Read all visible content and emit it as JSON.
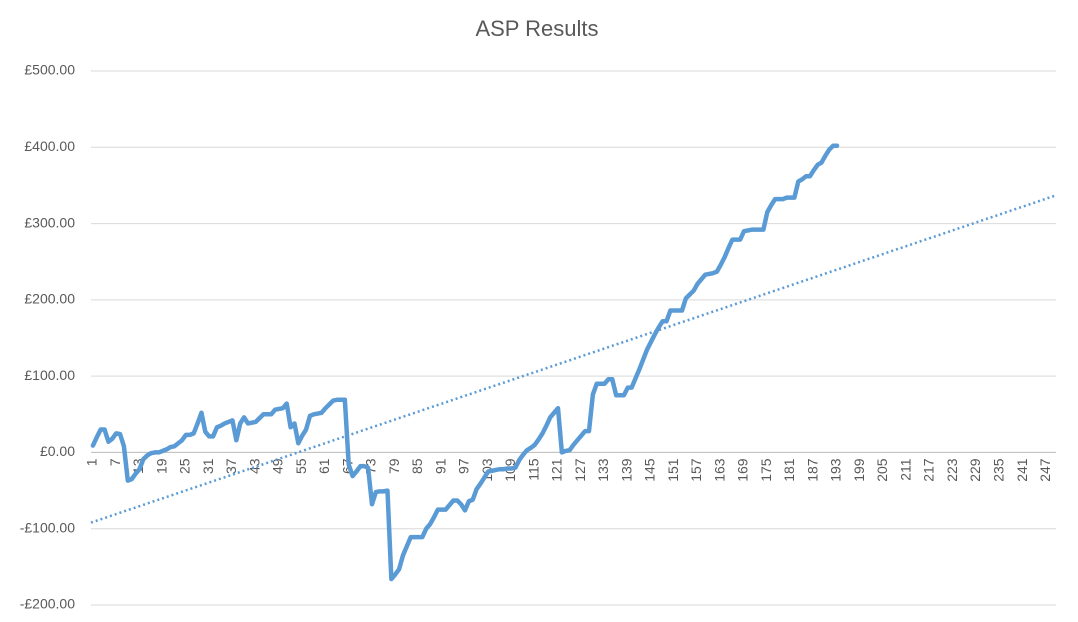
{
  "chart_data": {
    "type": "line",
    "title": "ASP Results",
    "xlim": [
      0.5,
      249.5
    ],
    "xticks": [
      1,
      7,
      13,
      19,
      25,
      31,
      37,
      43,
      49,
      55,
      61,
      67,
      73,
      79,
      85,
      91,
      97,
      103,
      109,
      115,
      121,
      127,
      133,
      139,
      145,
      151,
      157,
      163,
      169,
      175,
      181,
      187,
      193,
      199,
      205,
      211,
      217,
      223,
      229,
      235,
      241,
      247
    ],
    "ylim": [
      -200,
      500
    ],
    "yticks": [
      {
        "value": -200,
        "label": "-£200.00"
      },
      {
        "value": -100,
        "label": "-£100.00"
      },
      {
        "value": 0,
        "label": "£0.00"
      },
      {
        "value": 100,
        "label": "£100.00"
      },
      {
        "value": 200,
        "label": "£200.00"
      },
      {
        "value": 300,
        "label": "£300.00"
      },
      {
        "value": 400,
        "label": "£400.00"
      },
      {
        "value": 500,
        "label": "£500.00"
      }
    ],
    "grid": true,
    "series": [
      {
        "color": "#5b9bd5",
        "x": [
          1,
          2,
          3,
          4,
          5,
          6,
          7,
          8,
          9,
          10,
          11,
          12,
          13,
          14,
          15,
          16,
          17,
          18,
          19,
          20,
          21,
          22,
          23,
          24,
          25,
          26,
          27,
          28,
          29,
          30,
          31,
          32,
          33,
          34,
          35,
          36,
          37,
          38,
          39,
          40,
          41,
          42,
          43,
          44,
          45,
          46,
          47,
          48,
          49,
          50,
          51,
          52,
          53,
          54,
          55,
          56,
          57,
          58,
          59,
          60,
          61,
          62,
          63,
          64,
          65,
          66,
          67,
          68,
          69,
          70,
          71,
          72,
          73,
          74,
          75,
          76,
          77,
          78,
          79,
          80,
          81,
          82,
          83,
          84,
          85,
          86,
          87,
          88,
          89,
          90,
          91,
          92,
          93,
          94,
          95,
          96,
          97,
          98,
          99,
          100,
          101,
          102,
          103,
          104,
          105,
          106,
          107,
          108,
          109,
          110,
          111,
          112,
          113,
          114,
          115,
          116,
          117,
          118,
          119,
          120,
          121,
          122,
          123,
          124,
          125,
          126,
          127,
          128,
          129,
          130,
          131,
          132,
          133,
          134,
          135,
          136,
          137,
          138,
          139,
          140,
          141,
          142,
          143,
          144,
          145,
          146,
          147,
          148,
          149,
          150,
          151,
          152,
          153,
          154,
          155,
          156,
          157,
          158,
          159,
          160,
          161,
          162,
          163,
          164,
          165,
          166,
          167,
          168,
          169,
          170,
          171,
          172,
          173,
          174,
          175,
          176,
          177,
          178,
          179,
          180,
          181,
          182,
          183,
          184,
          185,
          186,
          187,
          188,
          189,
          190,
          191,
          192,
          193
        ],
        "values": [
          9,
          20,
          30,
          30,
          14,
          18,
          25,
          24,
          8,
          -37,
          -35,
          -28,
          -22,
          -9,
          -4,
          -1,
          0,
          0,
          2,
          4,
          7,
          8,
          12,
          16,
          23,
          23,
          25,
          38,
          52,
          27,
          21,
          21,
          33,
          35,
          38,
          40,
          42,
          16,
          38,
          46,
          38,
          39,
          40,
          45,
          50,
          50,
          50,
          56,
          57,
          58,
          64,
          33,
          38,
          12,
          22,
          30,
          48,
          50,
          51,
          52,
          58,
          63,
          68,
          69,
          69,
          69,
          -16,
          -31,
          -25,
          -18,
          -18,
          -20,
          -68,
          -52,
          -51,
          -51,
          -50,
          -166,
          -160,
          -153,
          -135,
          -123,
          -111,
          -111,
          -111,
          -111,
          -100,
          -94,
          -85,
          -75,
          -75,
          -75,
          -69,
          -63,
          -63,
          -68,
          -76,
          -64,
          -62,
          -48,
          -41,
          -33,
          -25,
          -24,
          -23,
          -22,
          -22,
          -21,
          -21,
          -20,
          -10,
          -3,
          3,
          6,
          10,
          17,
          25,
          35,
          46,
          52,
          58,
          0,
          2,
          3,
          10,
          16,
          22,
          28,
          28,
          76,
          90,
          90,
          90,
          96,
          96,
          75,
          75,
          75,
          85,
          85,
          97,
          109,
          122,
          135,
          145,
          155,
          164,
          172,
          172,
          186,
          186,
          186,
          186,
          202,
          207,
          212,
          221,
          227,
          233,
          234,
          235,
          237,
          246,
          256,
          268,
          279,
          279,
          279,
          290,
          291,
          292,
          292,
          292,
          292,
          315,
          324,
          332,
          332,
          332,
          334,
          334,
          334,
          355,
          358,
          362,
          362,
          370,
          377,
          380,
          389,
          397,
          402,
          402
        ]
      }
    ],
    "trendline": {
      "color": "#5b9bd5",
      "x": [
        0.5,
        249.5
      ],
      "values": [
        -92,
        337
      ]
    }
  }
}
